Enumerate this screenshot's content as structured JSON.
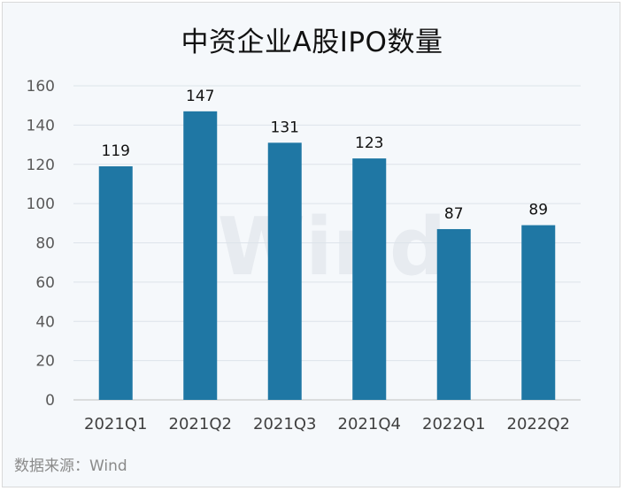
{
  "chart_data": {
    "type": "bar",
    "title": "中资企业A股IPO数量",
    "categories": [
      "2021Q1",
      "2021Q2",
      "2021Q3",
      "2021Q4",
      "2022Q1",
      "2022Q2"
    ],
    "values": [
      119,
      147,
      131,
      123,
      87,
      89
    ],
    "ylim": [
      0,
      160
    ],
    "yticks": [
      0,
      20,
      40,
      60,
      80,
      100,
      120,
      140,
      160
    ],
    "grid": true,
    "bar_color": "#1f77a4",
    "xlabel": "",
    "ylabel": ""
  },
  "source": "数据来源：Wind",
  "watermark": "Wind"
}
